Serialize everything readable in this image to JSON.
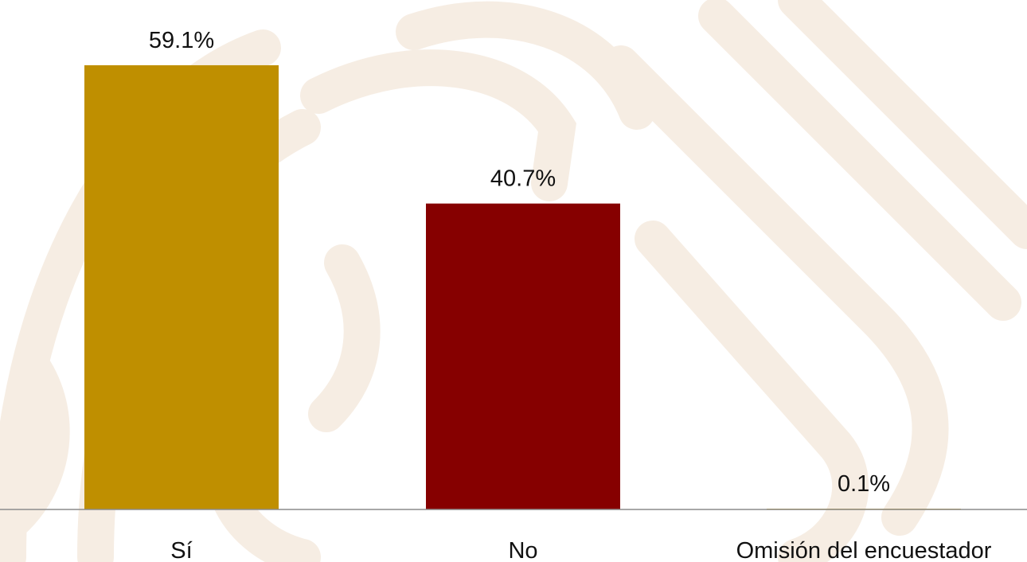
{
  "chart_data": {
    "type": "bar",
    "categories": [
      "Sí",
      "No",
      "Omisión del encuestador"
    ],
    "values": [
      59.1,
      40.7,
      0.1
    ],
    "value_labels": [
      "59.1%",
      "40.7%",
      "0.1%"
    ],
    "bar_colors": [
      "#BF8F00",
      "#860000",
      "#BF8F00"
    ],
    "title": "",
    "xlabel": "",
    "ylabel": "",
    "ylim": [
      0,
      61
    ],
    "grid": false,
    "legend": "none"
  },
  "colors": {
    "background_pattern": "#F6EDE3",
    "axis_line": "#8C8C8C"
  }
}
